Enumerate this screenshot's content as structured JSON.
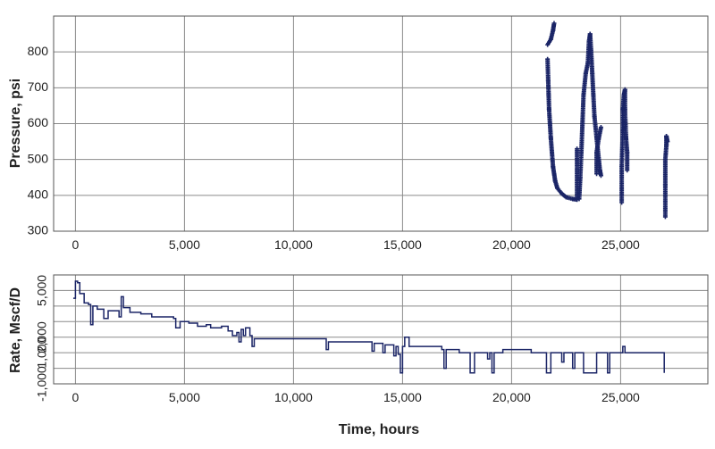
{
  "chart_data": [
    {
      "type": "scatter",
      "xlabel": "",
      "ylabel": "Pressure, psi",
      "xlim": [
        -1000,
        29000
      ],
      "ylim": [
        300,
        900
      ],
      "xticks": [
        0,
        5000,
        10000,
        15000,
        20000,
        25000
      ],
      "xtick_labels": [
        "0",
        "5,000",
        "10,000",
        "15,000",
        "20,000",
        "25,000"
      ],
      "yticks": [
        300,
        400,
        500,
        600,
        700,
        800
      ],
      "ytick_labels": [
        "300",
        "400",
        "500",
        "600",
        "700",
        "800"
      ],
      "grid": true,
      "marker_color": "#1a2466",
      "segments": [
        [
          [
            21650,
            820
          ],
          [
            21800,
            835
          ],
          [
            21900,
            860
          ],
          [
            21950,
            880
          ]
        ],
        [
          [
            21650,
            780
          ],
          [
            21680,
            720
          ],
          [
            21700,
            680
          ],
          [
            21720,
            640
          ],
          [
            21760,
            600
          ],
          [
            21800,
            560
          ],
          [
            21850,
            520
          ],
          [
            21900,
            480
          ],
          [
            21950,
            460
          ],
          [
            22000,
            440
          ],
          [
            22100,
            420
          ],
          [
            22300,
            405
          ],
          [
            22500,
            395
          ],
          [
            22800,
            390
          ],
          [
            23000,
            388
          ]
        ],
        [
          [
            23000,
            388
          ],
          [
            23000,
            470
          ],
          [
            23000,
            530
          ]
        ],
        [
          [
            23100,
            390
          ],
          [
            23150,
            450
          ],
          [
            23200,
            520
          ],
          [
            23250,
            600
          ],
          [
            23300,
            680
          ],
          [
            23400,
            740
          ],
          [
            23500,
            770
          ],
          [
            23550,
            830
          ],
          [
            23600,
            850
          ],
          [
            23650,
            800
          ],
          [
            23700,
            740
          ],
          [
            23750,
            680
          ],
          [
            23800,
            620
          ],
          [
            23900,
            560
          ],
          [
            24000,
            500
          ],
          [
            24050,
            470
          ],
          [
            24100,
            455
          ]
        ],
        [
          [
            23900,
            460
          ],
          [
            23900,
            520
          ],
          [
            24000,
            560
          ],
          [
            24100,
            590
          ]
        ],
        [
          [
            25050,
            380
          ],
          [
            25050,
            480
          ],
          [
            25100,
            580
          ],
          [
            25100,
            640
          ],
          [
            25150,
            680
          ],
          [
            25200,
            695
          ],
          [
            25200,
            640
          ],
          [
            25250,
            560
          ],
          [
            25300,
            520
          ],
          [
            25300,
            470
          ]
        ],
        [
          [
            27050,
            340
          ],
          [
            27050,
            430
          ],
          [
            27050,
            500
          ],
          [
            27100,
            540
          ],
          [
            27100,
            565
          ],
          [
            27150,
            550
          ]
        ]
      ]
    },
    {
      "type": "line",
      "xlabel": "Time, hours",
      "ylabel": "Rate, Mscf/D",
      "xlim": [
        -1000,
        29000
      ],
      "ylim": [
        -1000,
        6000
      ],
      "xticks": [
        0,
        5000,
        10000,
        15000,
        20000,
        25000
      ],
      "xtick_labels": [
        "0",
        "5,000",
        "10,000",
        "15,000",
        "20,000",
        "25,000"
      ],
      "yticks": [
        -1000,
        0,
        1000,
        2000,
        3000,
        4000,
        5000
      ],
      "ytick_labels": [
        "-1,000",
        "",
        "1,000",
        "2,000",
        "",
        "",
        "5,000"
      ],
      "ylabel_display": "Rate, Mscf/D",
      "grid": true,
      "line_color": "#1a2466",
      "points": [
        [
          -100,
          4500
        ],
        [
          0,
          5600
        ],
        [
          100,
          5500
        ],
        [
          200,
          4800
        ],
        [
          400,
          4200
        ],
        [
          600,
          4100
        ],
        [
          700,
          2800
        ],
        [
          800,
          4000
        ],
        [
          1000,
          3800
        ],
        [
          1200,
          3800
        ],
        [
          1300,
          3200
        ],
        [
          1500,
          3700
        ],
        [
          1800,
          3700
        ],
        [
          2000,
          3300
        ],
        [
          2100,
          4600
        ],
        [
          2200,
          3900
        ],
        [
          2500,
          3600
        ],
        [
          3000,
          3500
        ],
        [
          3500,
          3300
        ],
        [
          4500,
          3200
        ],
        [
          4600,
          2600
        ],
        [
          4800,
          3000
        ],
        [
          5200,
          2900
        ],
        [
          5600,
          2700
        ],
        [
          6000,
          2800
        ],
        [
          6200,
          2600
        ],
        [
          6700,
          2700
        ],
        [
          7000,
          2400
        ],
        [
          7200,
          2100
        ],
        [
          7400,
          2300
        ],
        [
          7500,
          1700
        ],
        [
          7600,
          2500
        ],
        [
          7700,
          2100
        ],
        [
          7800,
          2600
        ],
        [
          8000,
          2100
        ],
        [
          8100,
          1400
        ],
        [
          8200,
          1900
        ],
        [
          9000,
          1900
        ],
        [
          10000,
          1900
        ],
        [
          11400,
          1900
        ],
        [
          11500,
          1200
        ],
        [
          11600,
          1700
        ],
        [
          12500,
          1700
        ],
        [
          13500,
          1700
        ],
        [
          13600,
          1100
        ],
        [
          13700,
          1600
        ],
        [
          14000,
          1600
        ],
        [
          14100,
          1000
        ],
        [
          14200,
          1500
        ],
        [
          14500,
          1500
        ],
        [
          14600,
          800
        ],
        [
          14700,
          1400
        ],
        [
          14800,
          900
        ],
        [
          14900,
          -300
        ],
        [
          15000,
          1400
        ],
        [
          15100,
          2000
        ],
        [
          15300,
          1400
        ],
        [
          16500,
          1400
        ],
        [
          16800,
          1200
        ],
        [
          16900,
          0
        ],
        [
          17000,
          1200
        ],
        [
          17500,
          1200
        ],
        [
          17600,
          1000
        ],
        [
          18000,
          1000
        ],
        [
          18100,
          -300
        ],
        [
          18300,
          1000
        ],
        [
          18800,
          1000
        ],
        [
          18900,
          600
        ],
        [
          19000,
          1000
        ],
        [
          19100,
          -300
        ],
        [
          19200,
          1000
        ],
        [
          19500,
          1000
        ],
        [
          19600,
          1200
        ],
        [
          20800,
          1200
        ],
        [
          20900,
          1000
        ],
        [
          21500,
          1000
        ],
        [
          21600,
          -300
        ],
        [
          21800,
          1000
        ],
        [
          22200,
          1000
        ],
        [
          22300,
          400
        ],
        [
          22400,
          1000
        ],
        [
          22700,
          1000
        ],
        [
          22800,
          0
        ],
        [
          22900,
          1000
        ],
        [
          23200,
          1000
        ],
        [
          23300,
          -300
        ],
        [
          23800,
          -300
        ],
        [
          23900,
          1000
        ],
        [
          24300,
          1000
        ],
        [
          24400,
          -300
        ],
        [
          24500,
          1000
        ],
        [
          25000,
          1000
        ],
        [
          25100,
          1400
        ],
        [
          25200,
          1000
        ],
        [
          27000,
          1000
        ],
        [
          27000,
          -300
        ]
      ]
    }
  ]
}
